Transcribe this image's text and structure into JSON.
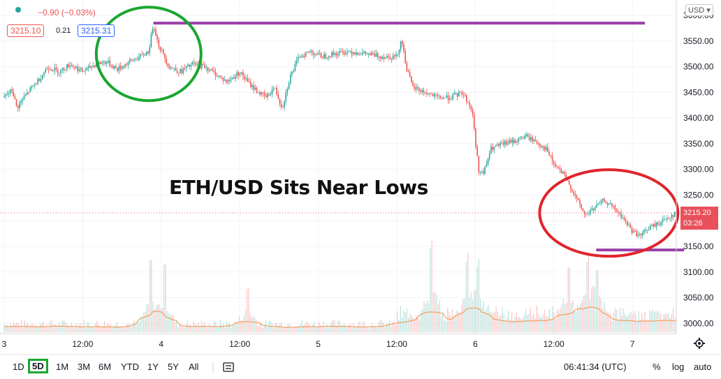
{
  "header": {
    "change_text": "−0.90 (−0.03%)",
    "bid": "3215.10",
    "spread": "0.21",
    "ask": "3215.31",
    "currency": "USD"
  },
  "last_price": {
    "value": "3215.20",
    "countdown": "03:26"
  },
  "annotation_title": "ETH/USD Sits Near Lows",
  "range_buttons": [
    "1D",
    "5D",
    "1M",
    "3M",
    "6M",
    "YTD",
    "1Y",
    "5Y",
    "All"
  ],
  "active_range": "5D",
  "status": {
    "time": "06:41:34 (UTC)",
    "percent": "%",
    "log": "log",
    "auto": "auto"
  },
  "colors": {
    "up": "#26a69a",
    "down": "#ef5350",
    "annotation_green": "#1aa631",
    "annotation_red": "#e0242c",
    "line_purple": "#9a3fa8",
    "volume_ma": "#f0a060"
  },
  "chart_data": {
    "type": "line",
    "ylim": [
      2980,
      3630
    ],
    "y_ticks": [
      3000,
      3050,
      3100,
      3150,
      3200,
      3250,
      3300,
      3350,
      3400,
      3450,
      3500,
      3550,
      3600
    ],
    "y_tick_labels": [
      "3000.00",
      "3050.00",
      "3100.00",
      "3150.00",
      "3200.00",
      "3250.00",
      "3300.00",
      "3350.00",
      "3400.00",
      "3450.00",
      "3500.00",
      "3550.00",
      "3600.00"
    ],
    "x_tick_labels": [
      "3",
      "12:00",
      "4",
      "12:00",
      "5",
      "12:00",
      "6",
      "12:00",
      "7"
    ],
    "x_tick_positions": [
      0,
      0.5,
      1,
      1.5,
      2,
      2.5,
      3,
      3.5,
      4
    ],
    "xlim": [
      0,
      4.28
    ],
    "price_points": [
      [
        0.0,
        3440
      ],
      [
        0.05,
        3455
      ],
      [
        0.08,
        3420
      ],
      [
        0.15,
        3450
      ],
      [
        0.22,
        3475
      ],
      [
        0.28,
        3500
      ],
      [
        0.35,
        3490
      ],
      [
        0.42,
        3505
      ],
      [
        0.5,
        3490
      ],
      [
        0.58,
        3505
      ],
      [
        0.65,
        3510
      ],
      [
        0.72,
        3495
      ],
      [
        0.8,
        3510
      ],
      [
        0.87,
        3520
      ],
      [
        0.92,
        3530
      ],
      [
        0.95,
        3585
      ],
      [
        0.98,
        3545
      ],
      [
        1.05,
        3500
      ],
      [
        1.12,
        3490
      ],
      [
        1.2,
        3505
      ],
      [
        1.28,
        3500
      ],
      [
        1.35,
        3485
      ],
      [
        1.42,
        3470
      ],
      [
        1.5,
        3490
      ],
      [
        1.55,
        3470
      ],
      [
        1.62,
        3450
      ],
      [
        1.67,
        3440
      ],
      [
        1.72,
        3460
      ],
      [
        1.77,
        3420
      ],
      [
        1.82,
        3480
      ],
      [
        1.88,
        3520
      ],
      [
        1.95,
        3530
      ],
      [
        2.02,
        3520
      ],
      [
        2.1,
        3525
      ],
      [
        2.2,
        3530
      ],
      [
        2.3,
        3525
      ],
      [
        2.4,
        3520
      ],
      [
        2.5,
        3520
      ],
      [
        2.53,
        3555
      ],
      [
        2.56,
        3500
      ],
      [
        2.6,
        3460
      ],
      [
        2.68,
        3450
      ],
      [
        2.76,
        3440
      ],
      [
        2.84,
        3440
      ],
      [
        2.92,
        3450
      ],
      [
        2.98,
        3415
      ],
      [
        3.02,
        3300
      ],
      [
        3.05,
        3290
      ],
      [
        3.1,
        3340
      ],
      [
        3.18,
        3350
      ],
      [
        3.25,
        3355
      ],
      [
        3.32,
        3365
      ],
      [
        3.38,
        3355
      ],
      [
        3.45,
        3340
      ],
      [
        3.5,
        3310
      ],
      [
        3.56,
        3290
      ],
      [
        3.6,
        3270
      ],
      [
        3.64,
        3245
      ],
      [
        3.7,
        3210
      ],
      [
        3.76,
        3225
      ],
      [
        3.82,
        3240
      ],
      [
        3.88,
        3225
      ],
      [
        3.94,
        3205
      ],
      [
        4.0,
        3180
      ],
      [
        4.05,
        3170
      ],
      [
        4.1,
        3185
      ],
      [
        4.17,
        3195
      ],
      [
        4.22,
        3205
      ],
      [
        4.28,
        3215
      ]
    ],
    "volume_ylim": [
      0,
      600
    ],
    "volume_spikes": [
      [
        0.93,
        150
      ],
      [
        1.02,
        140
      ],
      [
        1.55,
        90
      ],
      [
        2.72,
        160
      ],
      [
        2.95,
        130
      ],
      [
        3.02,
        120
      ],
      [
        3.6,
        110
      ],
      [
        3.72,
        130
      ],
      [
        3.78,
        115
      ]
    ],
    "resistance_line": {
      "x": [
        0.95,
        4.08
      ],
      "y": 3585
    },
    "support_line": {
      "x": [
        3.77,
        4.33
      ],
      "y": 3143
    },
    "highlight_circles": [
      {
        "center": [
          0.92,
          3525
        ],
        "color": "green"
      },
      {
        "center": [
          3.85,
          3215
        ],
        "color": "red"
      }
    ]
  }
}
